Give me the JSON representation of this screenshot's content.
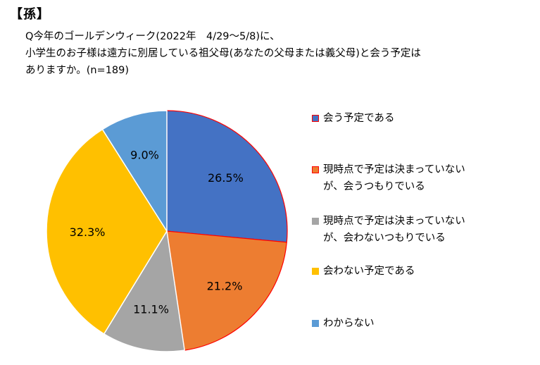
{
  "header": {
    "tag": "【孫】",
    "question_lines": [
      "Q今年のゴールデンウィーク(2022年　4/29～5/8)に、",
      "小学生のお子様は遠方に別居している祖父母(あなたの父母または義父母)と会う予定は",
      "ありますか。(n=189)"
    ]
  },
  "chart_data": {
    "type": "pie",
    "start_angle": "12 o'clock",
    "direction": "clockwise",
    "slices": [
      {
        "label_lines": [
          "会う予定である"
        ],
        "value": 26.5,
        "display": "26.5%",
        "color": "#4472C4",
        "border": "#FF0000"
      },
      {
        "label_lines": [
          "現時点で予定は決まっていない",
          "が、会うつもりでいる"
        ],
        "value": 21.2,
        "display": "21.2%",
        "color": "#ED7D31",
        "border": "#FF0000"
      },
      {
        "label_lines": [
          "現時点で予定は決まっていない",
          "が、会わないつもりでいる"
        ],
        "value": 11.1,
        "display": "11.1%",
        "color": "#A5A5A5",
        "border": "#FFFFFF"
      },
      {
        "label_lines": [
          "会わない予定である"
        ],
        "value": 32.3,
        "display": "32.3%",
        "color": "#FFC000",
        "border": "#FFFFFF"
      },
      {
        "label_lines": [
          "わからない"
        ],
        "value": 9.0,
        "display": "9.0%",
        "color": "#5B9BD5",
        "border": "#FFFFFF"
      }
    ],
    "legend_position": "right"
  }
}
